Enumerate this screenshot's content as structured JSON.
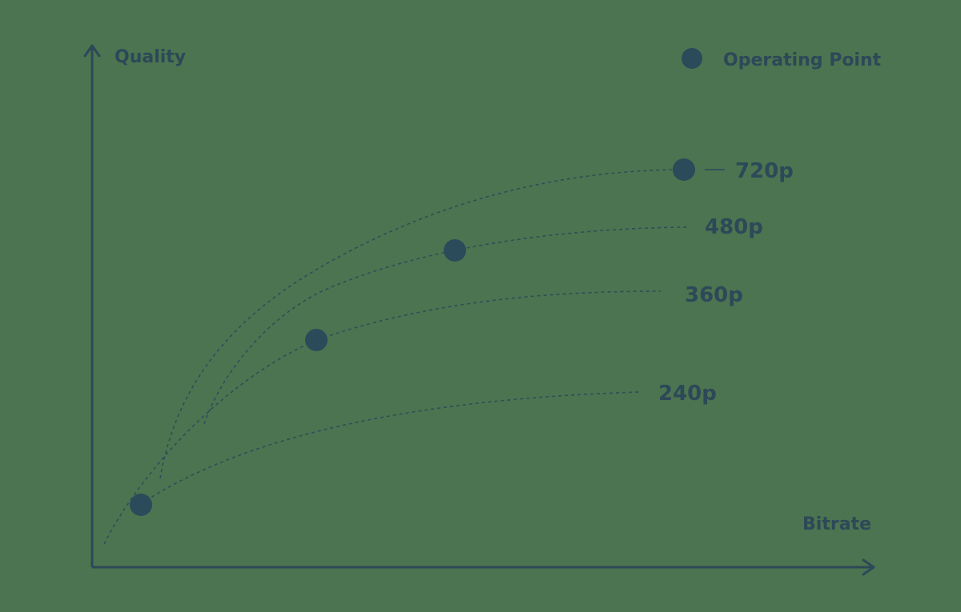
{
  "axes": {
    "y_label": "Quality",
    "x_label": "Bitrate"
  },
  "legend": {
    "label": "Operating Point"
  },
  "curves": [
    {
      "id": "720p",
      "label": "720p"
    },
    {
      "id": "480p",
      "label": "480p"
    },
    {
      "id": "360p",
      "label": "360p"
    },
    {
      "id": "240p",
      "label": "240p"
    }
  ],
  "colors": {
    "background": "#4c7450",
    "ink": "#2d4858"
  }
}
